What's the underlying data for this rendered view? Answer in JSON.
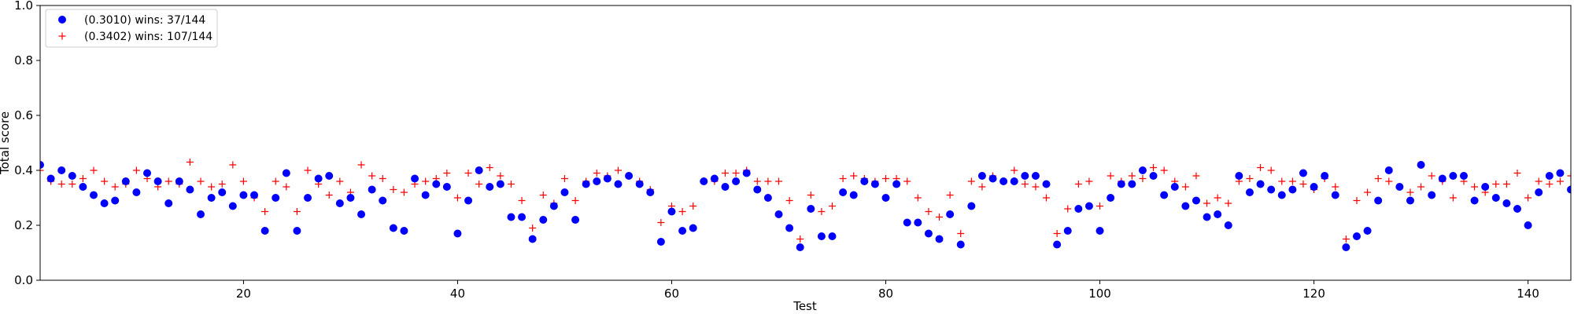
{
  "chart_data": {
    "type": "scatter",
    "xlabel": "Test",
    "ylabel": "Total score",
    "xlim": [
      1,
      144
    ],
    "ylim": [
      0,
      1.0
    ],
    "xticks": [
      20,
      40,
      60,
      80,
      100,
      120,
      140
    ],
    "yticks": [
      0.0,
      0.2,
      0.4,
      0.6,
      0.8,
      1.0
    ],
    "xtick_labels": [
      "20",
      "40",
      "60",
      "80",
      "100",
      "120",
      "140"
    ],
    "ytick_labels": [
      "0.0",
      "0.2",
      "0.4",
      "0.6",
      "0.8",
      "1.0"
    ],
    "grid": false,
    "legend_position": "top-left",
    "series": [
      {
        "name": "(0.3010) wins: 37/144",
        "marker": "circle",
        "color": "#0000ff",
        "x_start": 1,
        "values": [
          0.42,
          0.37,
          0.4,
          0.38,
          0.34,
          0.31,
          0.28,
          0.29,
          0.36,
          0.32,
          0.39,
          0.36,
          0.28,
          0.36,
          0.33,
          0.24,
          0.3,
          0.32,
          0.27,
          0.31,
          0.31,
          0.18,
          0.3,
          0.39,
          0.18,
          0.3,
          0.37,
          0.38,
          0.28,
          0.3,
          0.24,
          0.33,
          0.29,
          0.19,
          0.18,
          0.37,
          0.31,
          0.35,
          0.34,
          0.17,
          0.29,
          0.4,
          0.34,
          0.35,
          0.23,
          0.23,
          0.15,
          0.22,
          0.27,
          0.32,
          0.22,
          0.35,
          0.36,
          0.37,
          0.35,
          0.38,
          0.35,
          0.32,
          0.14,
          0.25,
          0.18,
          0.19,
          0.36,
          0.37,
          0.34,
          0.36,
          0.39,
          0.33,
          0.3,
          0.24,
          0.19,
          0.12,
          0.26,
          0.16,
          0.16,
          0.32,
          0.31,
          0.36,
          0.35,
          0.3,
          0.35,
          0.21,
          0.21,
          0.17,
          0.15,
          0.24,
          0.13,
          0.27,
          0.38,
          0.37,
          0.36,
          0.36,
          0.38,
          0.38,
          0.35,
          0.13,
          0.18,
          0.26,
          0.27,
          0.18,
          0.3,
          0.35,
          0.35,
          0.4,
          0.38,
          0.31,
          0.34,
          0.27,
          0.29,
          0.23,
          0.24,
          0.2,
          0.38,
          0.32,
          0.35,
          0.33,
          0.31,
          0.33,
          0.39,
          0.34,
          0.38,
          0.31,
          0.12,
          0.16,
          0.18,
          0.29,
          0.4,
          0.34,
          0.29,
          0.42,
          0.31,
          0.37,
          0.38,
          0.38,
          0.29,
          0.34,
          0.3,
          0.28,
          0.26,
          0.2,
          0.32,
          0.38,
          0.39,
          0.33
        ]
      },
      {
        "name": "(0.3402) wins: 107/144",
        "marker": "plus",
        "color": "#ff0000",
        "x_start": 1,
        "values": [
          0.4,
          0.36,
          0.35,
          0.35,
          0.37,
          0.4,
          0.36,
          0.34,
          0.35,
          0.4,
          0.37,
          0.34,
          0.36,
          0.35,
          0.43,
          0.36,
          0.34,
          0.35,
          0.42,
          0.36,
          0.3,
          0.25,
          0.36,
          0.34,
          0.25,
          0.4,
          0.35,
          0.31,
          0.36,
          0.32,
          0.42,
          0.38,
          0.37,
          0.33,
          0.32,
          0.35,
          0.36,
          0.37,
          0.39,
          0.3,
          0.39,
          0.35,
          0.41,
          0.38,
          0.35,
          0.29,
          0.19,
          0.31,
          0.28,
          0.37,
          0.29,
          0.36,
          0.39,
          0.38,
          0.4,
          0.38,
          0.36,
          0.33,
          0.21,
          0.27,
          0.25,
          0.27,
          0.36,
          0.36,
          0.39,
          0.39,
          0.4,
          0.36,
          0.36,
          0.36,
          0.29,
          0.15,
          0.31,
          0.25,
          0.27,
          0.37,
          0.38,
          0.37,
          0.36,
          0.37,
          0.37,
          0.36,
          0.3,
          0.25,
          0.23,
          0.31,
          0.17,
          0.36,
          0.34,
          0.38,
          0.36,
          0.4,
          0.35,
          0.34,
          0.3,
          0.17,
          0.26,
          0.35,
          0.36,
          0.27,
          0.38,
          0.36,
          0.38,
          0.37,
          0.41,
          0.4,
          0.36,
          0.34,
          0.38,
          0.28,
          0.3,
          0.28,
          0.36,
          0.37,
          0.41,
          0.4,
          0.36,
          0.36,
          0.35,
          0.33,
          0.37,
          0.34,
          0.15,
          0.29,
          0.32,
          0.37,
          0.36,
          0.34,
          0.32,
          0.34,
          0.38,
          0.36,
          0.3,
          0.36,
          0.34,
          0.32,
          0.35,
          0.35,
          0.39,
          0.3,
          0.36,
          0.35,
          0.36,
          0.38
        ]
      }
    ]
  }
}
